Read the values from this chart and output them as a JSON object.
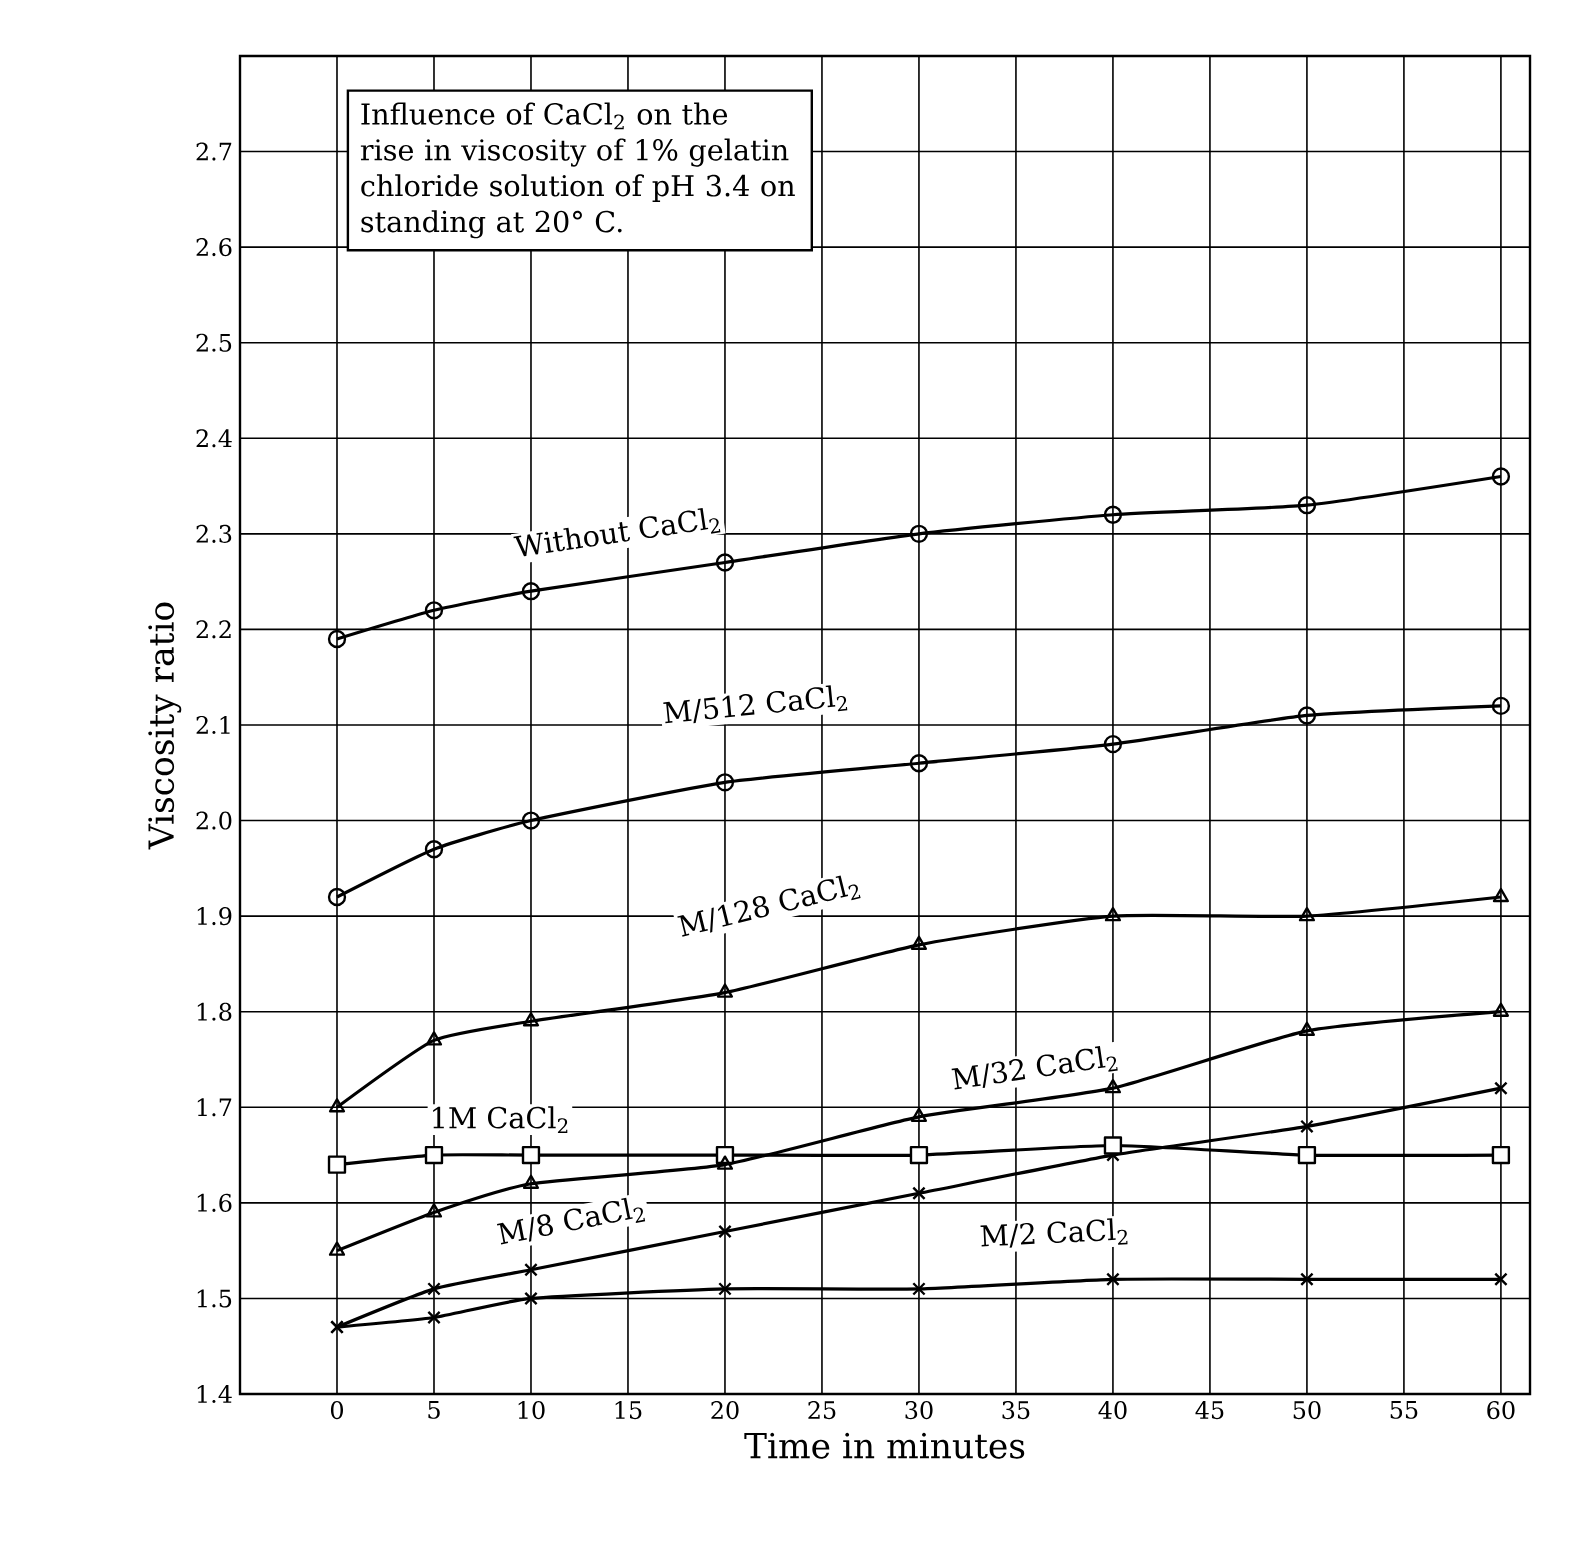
{
  "chart_data": {
    "type": "line",
    "title": "Influence of CaCl$_{2}$ on the rise in viscosity of 1% gelatin chloride solution of pH 3.4 on standing at 20° C.",
    "xlabel": "Time in minutes",
    "ylabel": "Viscosity ratio",
    "x": [
      0,
      5,
      10,
      20,
      30,
      40,
      50,
      60
    ],
    "series": [
      {
        "name": "Without CaCl$_{2}$",
        "color": "#000000",
        "marker": "circle",
        "values": [
          2.19,
          2.22,
          2.24,
          2.27,
          2.3,
          2.32,
          2.33,
          2.36
        ]
      },
      {
        "name": "M/512 CaCl$_{2}$",
        "color": "#000000",
        "marker": "circle",
        "values": [
          1.92,
          1.97,
          2.0,
          2.04,
          2.06,
          2.08,
          2.11,
          2.12
        ]
      },
      {
        "name": "M/128 CaCl$_{2}$",
        "color": "#000000",
        "marker": "triangle",
        "values": [
          1.7,
          1.77,
          1.79,
          1.82,
          1.87,
          1.9,
          1.9,
          1.92
        ]
      },
      {
        "name": "M/32 CaCl$_{2}$",
        "color": "#000000",
        "marker": "triangle",
        "values": [
          1.55,
          1.59,
          1.62,
          1.64,
          1.69,
          1.72,
          1.78,
          1.8
        ]
      },
      {
        "name": "1M CaCl$_{2}$",
        "color": "#000000",
        "marker": "square",
        "values": [
          1.64,
          1.65,
          1.65,
          1.65,
          1.65,
          1.66,
          1.65,
          1.65
        ]
      },
      {
        "name": "M/8 CaCl$_{2}$",
        "color": "#000000",
        "marker": "cross",
        "values": [
          1.47,
          1.51,
          1.53,
          1.57,
          1.61,
          1.65,
          1.68,
          1.72
        ]
      },
      {
        "name": "M/2 CaCl$_{2}$",
        "color": "#000000",
        "marker": "cross",
        "values": [
          1.47,
          1.48,
          1.5,
          1.51,
          1.51,
          1.52,
          1.52,
          1.52
        ]
      }
    ],
    "xlim": [
      -5,
      61.5
    ],
    "ylim": [
      1.4,
      2.8
    ],
    "xticks": [
      0,
      5,
      10,
      15,
      20,
      25,
      30,
      35,
      40,
      45,
      50,
      55,
      60
    ],
    "yticks": [
      1.4,
      1.5,
      1.6,
      1.7,
      1.8,
      1.9,
      {
        "value": 2,
        "label": "2.0"
      },
      2.1,
      2.2,
      2.3,
      2.4,
      2.5,
      2.6,
      2.7
    ],
    "grid": true,
    "line_style": "solid"
  }
}
